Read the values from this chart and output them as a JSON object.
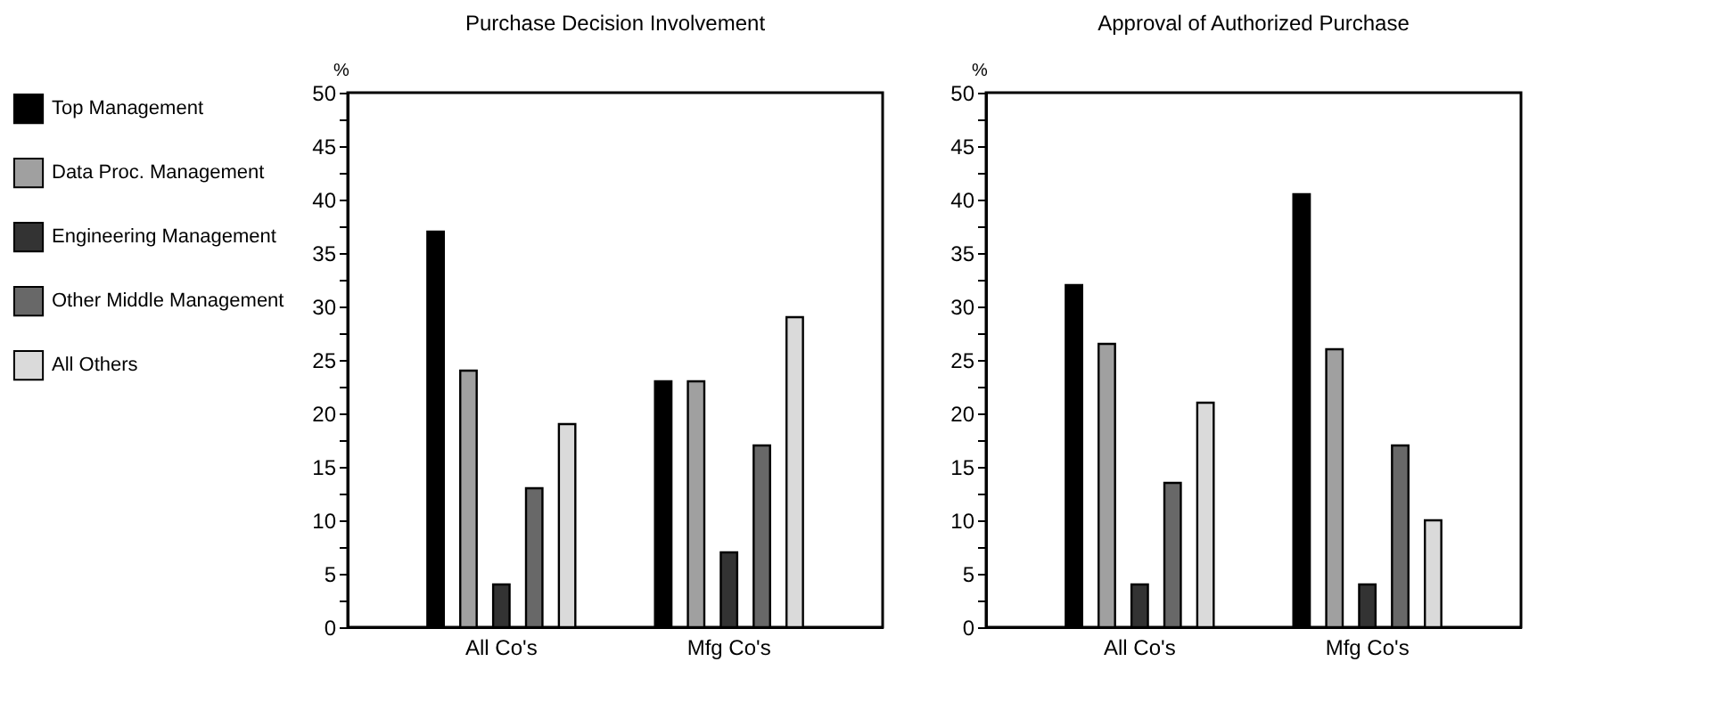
{
  "chart_data": [
    {
      "type": "bar",
      "title": "Purchase Decision Involvement",
      "ylabel": "%",
      "categories": [
        "All Co's",
        "Mfg Co's"
      ],
      "ylim": [
        0,
        50
      ],
      "yticks": [
        0,
        {
          "value": 2.5,
          "label": null
        },
        5,
        {
          "value": 7.5,
          "label": null
        },
        10,
        {
          "value": 12.5,
          "label": null
        },
        15,
        {
          "value": 17.5,
          "label": null
        },
        20,
        {
          "value": 22.5,
          "label": null
        },
        25,
        {
          "value": 27.5,
          "label": null
        },
        30,
        {
          "value": 32.5,
          "label": null
        },
        35,
        {
          "value": 37.5,
          "label": null
        },
        40,
        {
          "value": 42.5,
          "label": null
        },
        45,
        {
          "value": 47.5,
          "label": null
        },
        50
      ],
      "grid": false,
      "legend": "left",
      "series": [
        {
          "name": "Top Management",
          "color": "#000000",
          "values": [
            37,
            23
          ]
        },
        {
          "name": "Data Proc. Management",
          "color": "#a0a0a0",
          "values": [
            24,
            23
          ]
        },
        {
          "name": "Engineering Management",
          "color": "#333333",
          "values": [
            4,
            7
          ]
        },
        {
          "name": "Other Middle Management",
          "color": "#686868",
          "values": [
            13,
            17
          ]
        },
        {
          "name": "All Others",
          "color": "#dadada",
          "values": [
            19,
            29
          ]
        }
      ]
    },
    {
      "type": "bar",
      "title": "Approval of Authorized Purchase",
      "ylabel": "%",
      "categories": [
        "All Co's",
        "Mfg Co's"
      ],
      "ylim": [
        0,
        50
      ],
      "yticks": [
        0,
        {
          "value": 2.5,
          "label": null
        },
        5,
        {
          "value": 7.5,
          "label": null
        },
        10,
        {
          "value": 12.5,
          "label": null
        },
        15,
        {
          "value": 17.5,
          "label": null
        },
        20,
        {
          "value": 22.5,
          "label": null
        },
        25,
        {
          "value": 27.5,
          "label": null
        },
        30,
        {
          "value": 32.5,
          "label": null
        },
        35,
        {
          "value": 37.5,
          "label": null
        },
        40,
        {
          "value": 42.5,
          "label": null
        },
        45,
        {
          "value": 47.5,
          "label": null
        },
        50
      ],
      "grid": false,
      "legend": false,
      "series": [
        {
          "name": "Top Management",
          "color": "#000000",
          "values": [
            32,
            40.5
          ]
        },
        {
          "name": "Data Proc. Management",
          "color": "#a0a0a0",
          "values": [
            26.5,
            26
          ]
        },
        {
          "name": "Engineering Management",
          "color": "#333333",
          "values": [
            4,
            4
          ]
        },
        {
          "name": "Other Middle Management",
          "color": "#686868",
          "values": [
            13.5,
            17
          ]
        },
        {
          "name": "All Others",
          "color": "#dadada",
          "values": [
            21,
            10
          ]
        }
      ]
    }
  ]
}
